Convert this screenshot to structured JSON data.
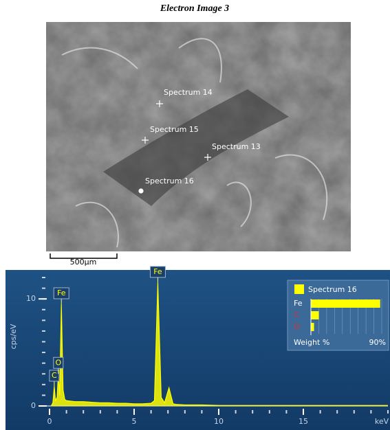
{
  "image": {
    "title": "Electron Image 3",
    "scale_label": "500µm",
    "markers": [
      "Spectrum 14",
      "Spectrum 15",
      "Spectrum 13",
      "Spectrum 16"
    ]
  },
  "chart_data": {
    "type": "line",
    "color": "#ffff00",
    "x_label": "keV",
    "y_label": "cps/eV",
    "x": [
      0.1,
      0.2,
      0.28,
      0.35,
      0.45,
      0.52,
      0.6,
      0.7,
      0.8,
      0.9,
      1.0,
      1.5,
      2.0,
      2.5,
      3.0,
      3.5,
      4.0,
      4.5,
      5.0,
      5.5,
      6.0,
      6.2,
      6.4,
      6.6,
      6.8,
      7.06,
      7.3,
      7.5,
      8,
      9,
      10,
      11,
      12,
      13,
      14,
      15,
      16,
      17,
      18,
      19,
      20
    ],
    "values": [
      0,
      0.3,
      1.8,
      0.5,
      0.8,
      3.0,
      1.0,
      9.5,
      1.5,
      0.6,
      0.5,
      0.4,
      0.4,
      0.35,
      0.3,
      0.3,
      0.25,
      0.25,
      0.2,
      0.2,
      0.25,
      0.5,
      11.5,
      0.8,
      0.3,
      1.7,
      0.2,
      0.15,
      0.1,
      0.1,
      0.05,
      0.05,
      0.05,
      0.05,
      0.05,
      0.05,
      0.05,
      0.05,
      0.05,
      0.05,
      0.05
    ],
    "xlim": [
      0,
      20
    ],
    "ylim": [
      0,
      12
    ],
    "xticks": [
      0,
      5,
      10,
      15
    ],
    "yticks": [
      0,
      10
    ],
    "annotations": [
      {
        "text": "C",
        "x": 0.28
      },
      {
        "text": "O",
        "x": 0.52
      },
      {
        "text": "Fe",
        "x": 0.7
      },
      {
        "text": "Fe",
        "x": 6.4
      }
    ]
  },
  "weight_panel": {
    "title": "Spectrum 16",
    "axis_label": "Weight %",
    "max": {
      "value": 90,
      "label": "90%"
    },
    "elements": [
      {
        "name": "Fe",
        "value": 88,
        "label_color": "#ffffff"
      },
      {
        "name": "C",
        "value": 10,
        "label_color": "#e03030"
      },
      {
        "name": "O",
        "value": 4,
        "label_color": "#e03030"
      }
    ]
  }
}
